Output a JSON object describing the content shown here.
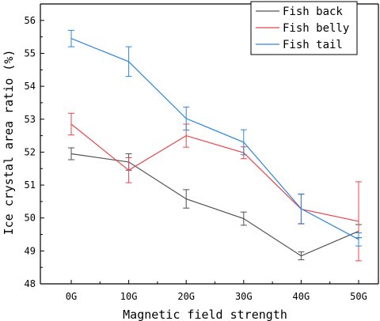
{
  "chart_data": {
    "type": "line",
    "xlabel": "Magnetic field strength",
    "ylabel": "Ice crystal area ratio (%)",
    "categories": [
      "0G",
      "10G",
      "20G",
      "30G",
      "40G",
      "50G"
    ],
    "ylim": [
      48,
      56.5
    ],
    "yticks": [
      48,
      49,
      50,
      51,
      52,
      53,
      54,
      55,
      56
    ],
    "legend_position": "top-right",
    "series": [
      {
        "name": "Fish back",
        "color": "#505050",
        "values": [
          51.95,
          51.7,
          50.58,
          49.98,
          48.85,
          49.6
        ],
        "errors": [
          0.18,
          0.25,
          0.28,
          0.2,
          0.12,
          0.2
        ]
      },
      {
        "name": "Fish belly",
        "color": "#e8454b",
        "values": [
          52.85,
          51.45,
          52.5,
          51.98,
          50.27,
          49.9
        ],
        "errors": [
          0.33,
          0.38,
          0.35,
          0.18,
          0.45,
          1.2
        ]
      },
      {
        "name": "Fish tail",
        "color": "#2e86de",
        "values": [
          55.45,
          54.75,
          53.02,
          52.3,
          50.28,
          49.35
        ],
        "errors": [
          0.25,
          0.45,
          0.35,
          0.38,
          0.45,
          0.2
        ]
      }
    ]
  }
}
